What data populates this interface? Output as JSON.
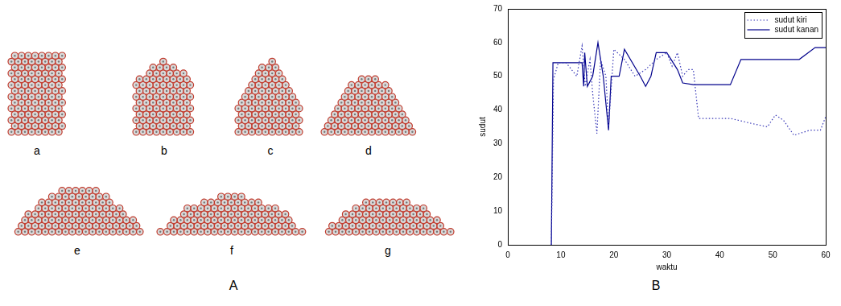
{
  "figure": {
    "panel_labels": [
      "A",
      "B"
    ],
    "snapshot_labels": [
      "a",
      "b",
      "c",
      "d",
      "e",
      "f",
      "g"
    ]
  },
  "chart_data": {
    "type": "line",
    "x_label": "waktu",
    "y_label": "sudut",
    "xlim": [
      0,
      60
    ],
    "xticks": [
      0,
      10,
      20,
      30,
      40,
      50,
      60
    ],
    "ylim": [
      0,
      70
    ],
    "yticks": [
      0,
      10,
      20,
      30,
      40,
      50,
      60,
      70
    ],
    "grid": false,
    "legend": "upper right",
    "series": [
      {
        "name": "sudut kiri",
        "color": "#3a3ab8",
        "line_style": "dotted",
        "x": [
          8.2,
          8.6,
          9.5,
          11,
          13,
          14,
          14.6,
          15.5,
          16,
          16.8,
          17.5,
          18.5,
          19,
          20,
          22,
          24,
          26,
          28,
          30,
          31,
          32,
          33,
          34,
          35,
          36,
          42,
          46,
          49,
          50.5,
          52,
          54,
          57,
          59,
          60
        ],
        "values": [
          0,
          49,
          54,
          54,
          50,
          59,
          47,
          55,
          45,
          33,
          55,
          50,
          35,
          58,
          55,
          50,
          52,
          55,
          57,
          53,
          57,
          50,
          52,
          52,
          37.5,
          37.5,
          36,
          35,
          38.5,
          37,
          32.5,
          34,
          34,
          38
        ]
      },
      {
        "name": "sudut kanan",
        "color": "#00008b",
        "line_style": "solid",
        "x": [
          8.2,
          8.5,
          14,
          14.3,
          14.5,
          15,
          16,
          17,
          18,
          19,
          19.5,
          21,
          22,
          25,
          26,
          27,
          28,
          30,
          32,
          33,
          35,
          42,
          44,
          55,
          58,
          60
        ],
        "values": [
          0,
          54,
          54,
          47,
          57,
          47,
          50,
          60,
          50,
          34,
          50,
          50,
          58,
          50,
          47,
          50,
          57,
          57,
          52,
          48,
          47.5,
          47.5,
          55,
          55,
          58.5,
          58.5
        ]
      }
    ]
  }
}
